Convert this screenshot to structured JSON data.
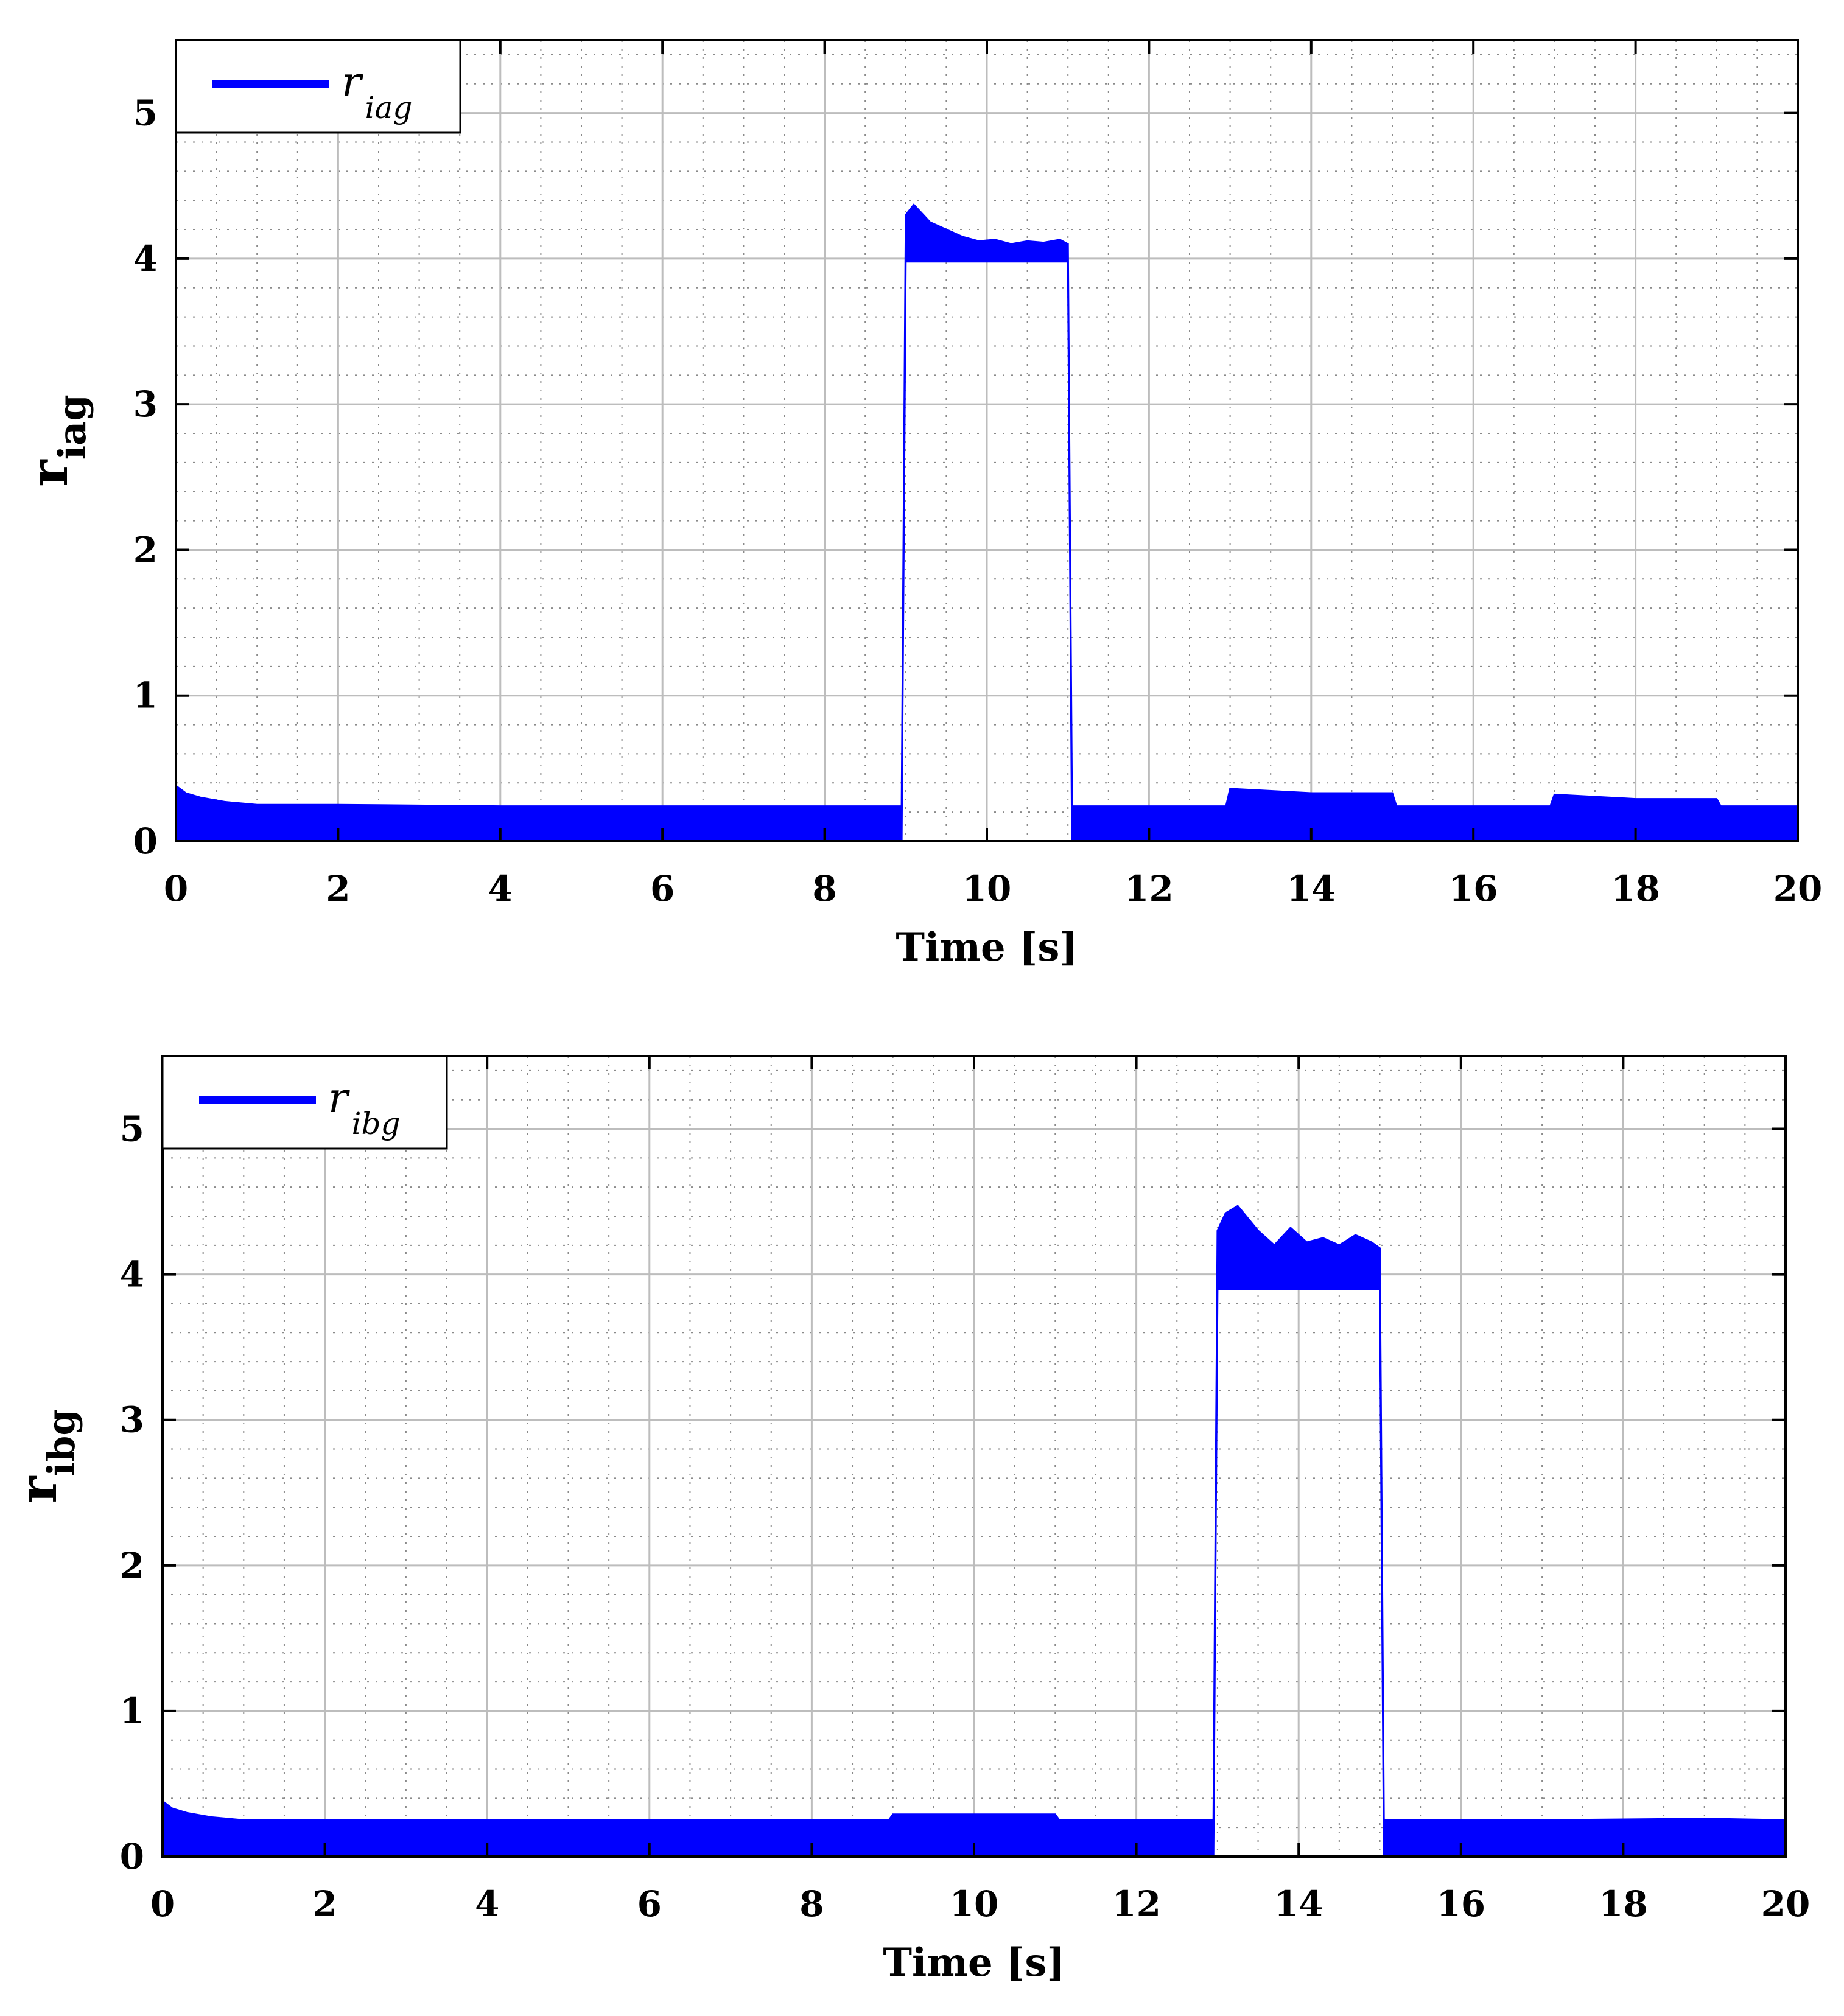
{
  "chart_data": [
    {
      "type": "line",
      "xlabel": "Time [s]",
      "ylabel": {
        "base": "r",
        "sub": "iag"
      },
      "xlim": [
        0,
        20
      ],
      "ylim": [
        0,
        5.5
      ],
      "xticks": [
        0,
        2,
        4,
        6,
        8,
        10,
        12,
        14,
        16,
        18,
        20
      ],
      "yticks": [
        0,
        1,
        2,
        3,
        4,
        5
      ],
      "xtick_labels": [
        "0",
        "2",
        "4",
        "6",
        "8",
        "10",
        "12",
        "14",
        "16",
        "18",
        "20"
      ],
      "ytick_labels": [
        "0",
        "1",
        "2",
        "3",
        "4",
        "5"
      ],
      "grid": true,
      "legend_position": "top-left",
      "series": [
        {
          "name": {
            "base": "r",
            "sub": "iag"
          },
          "color": "#0000ff",
          "envelope_upper": [
            [
              0,
              0.38
            ],
            [
              0.12,
              0.33
            ],
            [
              0.3,
              0.3
            ],
            [
              0.6,
              0.27
            ],
            [
              1.0,
              0.25
            ],
            [
              2,
              0.25
            ],
            [
              4,
              0.24
            ],
            [
              8.95,
              0.24
            ],
            [
              9.0,
              4.3
            ],
            [
              9.1,
              4.37
            ],
            [
              9.3,
              4.25
            ],
            [
              9.5,
              4.2
            ],
            [
              9.7,
              4.15
            ],
            [
              9.9,
              4.12
            ],
            [
              10.1,
              4.13
            ],
            [
              10.3,
              4.1
            ],
            [
              10.5,
              4.12
            ],
            [
              10.7,
              4.11
            ],
            [
              10.9,
              4.13
            ],
            [
              11.0,
              4.1
            ],
            [
              11.05,
              0.24
            ],
            [
              12.95,
              0.24
            ],
            [
              13.0,
              0.36
            ],
            [
              14,
              0.33
            ],
            [
              15.0,
              0.33
            ],
            [
              15.05,
              0.24
            ],
            [
              16.95,
              0.24
            ],
            [
              17.0,
              0.32
            ],
            [
              18,
              0.29
            ],
            [
              19.0,
              0.29
            ],
            [
              19.05,
              0.24
            ],
            [
              20,
              0.24
            ]
          ],
          "envelope_lower": [
            [
              0,
              0
            ],
            [
              8.95,
              0
            ],
            [
              9.0,
              3.98
            ],
            [
              11.0,
              3.98
            ],
            [
              11.05,
              0
            ],
            [
              20,
              0
            ]
          ]
        }
      ]
    },
    {
      "type": "line",
      "xlabel": "Time [s]",
      "ylabel": {
        "base": "r",
        "sub": "ibg"
      },
      "xlim": [
        0,
        20
      ],
      "ylim": [
        0,
        5.5
      ],
      "xticks": [
        0,
        2,
        4,
        6,
        8,
        10,
        12,
        14,
        16,
        18,
        20
      ],
      "yticks": [
        0,
        1,
        2,
        3,
        4,
        5
      ],
      "xtick_labels": [
        "0",
        "2",
        "4",
        "6",
        "8",
        "10",
        "12",
        "14",
        "16",
        "18",
        "20"
      ],
      "ytick_labels": [
        "0",
        "1",
        "2",
        "3",
        "4",
        "5"
      ],
      "grid": true,
      "legend_position": "top-left",
      "series": [
        {
          "name": {
            "base": "r",
            "sub": "ibg"
          },
          "color": "#0000ff",
          "envelope_upper": [
            [
              0,
              0.38
            ],
            [
              0.12,
              0.33
            ],
            [
              0.3,
              0.3
            ],
            [
              0.6,
              0.27
            ],
            [
              1.0,
              0.25
            ],
            [
              2,
              0.25
            ],
            [
              4,
              0.25
            ],
            [
              8.95,
              0.25
            ],
            [
              9.0,
              0.29
            ],
            [
              10,
              0.29
            ],
            [
              11.0,
              0.29
            ],
            [
              11.05,
              0.25
            ],
            [
              12.95,
              0.25
            ],
            [
              13.0,
              4.3
            ],
            [
              13.1,
              4.42
            ],
            [
              13.25,
              4.47
            ],
            [
              13.5,
              4.3
            ],
            [
              13.7,
              4.2
            ],
            [
              13.9,
              4.32
            ],
            [
              14.1,
              4.22
            ],
            [
              14.3,
              4.25
            ],
            [
              14.5,
              4.2
            ],
            [
              14.7,
              4.27
            ],
            [
              14.9,
              4.22
            ],
            [
              15.0,
              4.18
            ],
            [
              15.05,
              0.25
            ],
            [
              17,
              0.25
            ],
            [
              19,
              0.26
            ],
            [
              20,
              0.25
            ]
          ],
          "envelope_lower": [
            [
              0,
              0
            ],
            [
              12.95,
              0
            ],
            [
              13.0,
              3.9
            ],
            [
              15.0,
              3.9
            ],
            [
              15.05,
              0
            ],
            [
              20,
              0
            ]
          ]
        }
      ]
    }
  ]
}
